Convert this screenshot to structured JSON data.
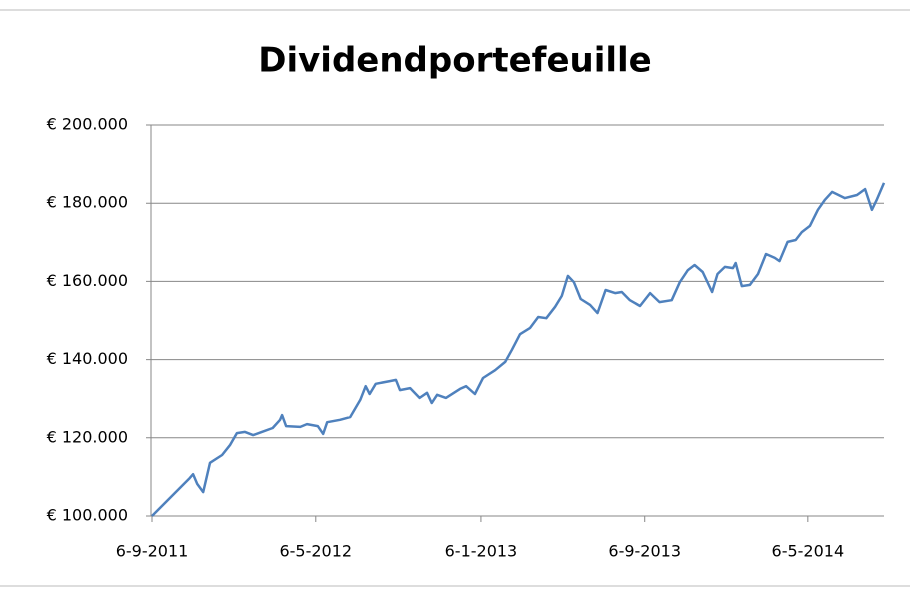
{
  "chart_data": {
    "type": "line",
    "title": "Dividendportefeuille",
    "x": [
      "2011-09-06",
      "2011-11-01",
      "2011-11-06",
      "2011-11-12",
      "2011-11-21",
      "2011-12-01",
      "2011-12-19",
      "2011-12-31",
      "2012-01-10",
      "2012-01-22",
      "2012-02-03",
      "2012-02-16",
      "2012-03-03",
      "2012-03-14",
      "2012-03-17",
      "2012-03-23",
      "2012-04-13",
      "2012-04-23",
      "2012-05-09",
      "2012-05-17",
      "2012-05-23",
      "2012-06-11",
      "2012-06-26",
      "2012-07-11",
      "2012-07-19",
      "2012-07-25",
      "2012-08-03",
      "2012-08-24",
      "2012-09-02",
      "2012-09-08",
      "2012-09-23",
      "2012-10-07",
      "2012-10-18",
      "2012-10-25",
      "2012-11-02",
      "2012-11-15",
      "2012-12-06",
      "2012-12-15",
      "2012-12-28",
      "2013-01-09",
      "2013-01-27",
      "2013-02-11",
      "2013-02-21",
      "2013-03-05",
      "2013-03-20",
      "2013-04-01",
      "2013-04-13",
      "2013-04-26",
      "2013-05-06",
      "2013-05-15",
      "2013-05-24",
      "2013-06-03",
      "2013-06-17",
      "2013-06-28",
      "2013-07-10",
      "2013-07-24",
      "2013-08-03",
      "2013-08-15",
      "2013-08-30",
      "2013-09-14",
      "2013-09-28",
      "2013-10-16",
      "2013-10-28",
      "2013-11-09",
      "2013-11-19",
      "2013-12-01",
      "2013-12-15",
      "2013-12-23",
      "2014-01-03",
      "2014-01-15",
      "2014-01-19",
      "2014-01-28",
      "2014-02-09",
      "2014-02-21",
      "2014-03-05",
      "2014-03-18",
      "2014-03-25",
      "2014-04-06",
      "2014-04-18",
      "2014-04-27",
      "2014-05-09",
      "2014-05-21",
      "2014-05-31",
      "2014-06-11",
      "2014-06-30",
      "2014-07-18",
      "2014-07-30",
      "2014-08-09",
      "2014-08-16",
      "2014-08-27"
    ],
    "series": [
      {
        "color": "#4f81bd",
        "values": [
          100000,
          109700,
          110700,
          108200,
          106100,
          113600,
          115600,
          118200,
          121200,
          121500,
          120700,
          121500,
          122500,
          124600,
          125800,
          123000,
          122800,
          123500,
          123000,
          121000,
          124000,
          124600,
          125300,
          129700,
          133200,
          131200,
          133800,
          134500,
          134800,
          132200,
          132700,
          130200,
          131500,
          128900,
          131000,
          130200,
          132500,
          133200,
          131200,
          135300,
          137300,
          139400,
          142500,
          146500,
          148100,
          150900,
          150600,
          153500,
          156300,
          161400,
          159800,
          155500,
          154000,
          151900,
          157800,
          157000,
          157300,
          155200,
          153700,
          157000,
          154700,
          155200,
          159800,
          162900,
          164200,
          162400,
          157300,
          161900,
          163700,
          163400,
          164700,
          158800,
          159100,
          161900,
          167000,
          166000,
          165200,
          170100,
          170600,
          172600,
          174200,
          178300,
          180800,
          182900,
          181300,
          182100,
          183600,
          178300,
          180800,
          185200
        ]
      }
    ],
    "xlim": [
      "2011-09-06",
      "2014-08-27"
    ],
    "xticks": [
      {
        "value": "2011-09-06",
        "label": "6-9-2011"
      },
      {
        "value": "2012-05-06",
        "label": "6-5-2012"
      },
      {
        "value": "2013-01-06",
        "label": "6-1-2013"
      },
      {
        "value": "2013-09-06",
        "label": "6-9-2013"
      },
      {
        "value": "2014-05-06",
        "label": "6-5-2014"
      }
    ],
    "ylim": [
      100000,
      200000
    ],
    "yticks": [
      {
        "value": 100000,
        "label": "€ 100.000"
      },
      {
        "value": 120000,
        "label": "€ 120.000"
      },
      {
        "value": 140000,
        "label": "€ 140.000"
      },
      {
        "value": 160000,
        "label": "€ 160.000"
      },
      {
        "value": 180000,
        "label": "€ 180.000"
      },
      {
        "value": 200000,
        "label": "€ 200.000"
      }
    ],
    "grid": true
  }
}
